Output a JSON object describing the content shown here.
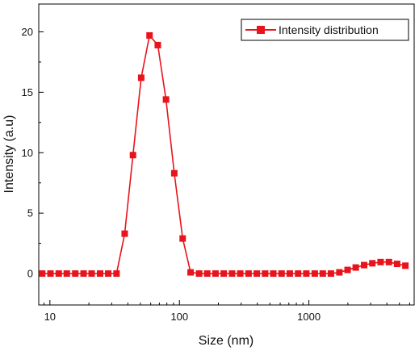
{
  "chart_data": {
    "type": "line",
    "title": "",
    "xlabel": "Size (nm)",
    "ylabel": "Intensity (a.u)",
    "xscale": "log",
    "xlim": [
      8.2,
      6500
    ],
    "ylim": [
      -2.6,
      22.3
    ],
    "xticks": [
      {
        "value": 10,
        "label": "10"
      },
      {
        "value": 100,
        "label": "100"
      },
      {
        "value": 1000,
        "label": "1000"
      }
    ],
    "yticks": [
      {
        "value": 0,
        "label": "0"
      },
      {
        "value": 5,
        "label": "5"
      },
      {
        "value": 10,
        "label": "10"
      },
      {
        "value": 15,
        "label": "15"
      },
      {
        "value": 20,
        "label": "20"
      }
    ],
    "grid": false,
    "legend_position": "top-right",
    "series": [
      {
        "name": "Intensity distribution",
        "color": "#e8141c",
        "marker": "square",
        "x": [
          8.72,
          10.1,
          11.7,
          13.5,
          15.7,
          18.2,
          21.0,
          24.4,
          28.2,
          32.7,
          37.8,
          43.8,
          50.7,
          58.8,
          68.1,
          78.8,
          91.3,
          106,
          122,
          142,
          164,
          190,
          220,
          255,
          295,
          342,
          396,
          459,
          531,
          615,
          712,
          825,
          955,
          1110,
          1280,
          1480,
          1720,
          1990,
          2300,
          2670,
          3090,
          3580,
          4150,
          4800,
          5560
        ],
        "y": [
          0,
          0,
          0,
          0,
          0,
          0,
          0,
          0,
          0,
          0,
          3.3,
          9.8,
          16.2,
          19.7,
          18.9,
          14.4,
          8.3,
          2.9,
          0.1,
          0,
          0,
          0,
          0,
          0,
          0,
          0,
          0,
          0,
          0,
          0,
          0,
          0,
          0,
          0,
          0,
          0,
          0.1,
          0.3,
          0.5,
          0.7,
          0.85,
          0.95,
          0.95,
          0.8,
          0.65
        ]
      }
    ]
  }
}
